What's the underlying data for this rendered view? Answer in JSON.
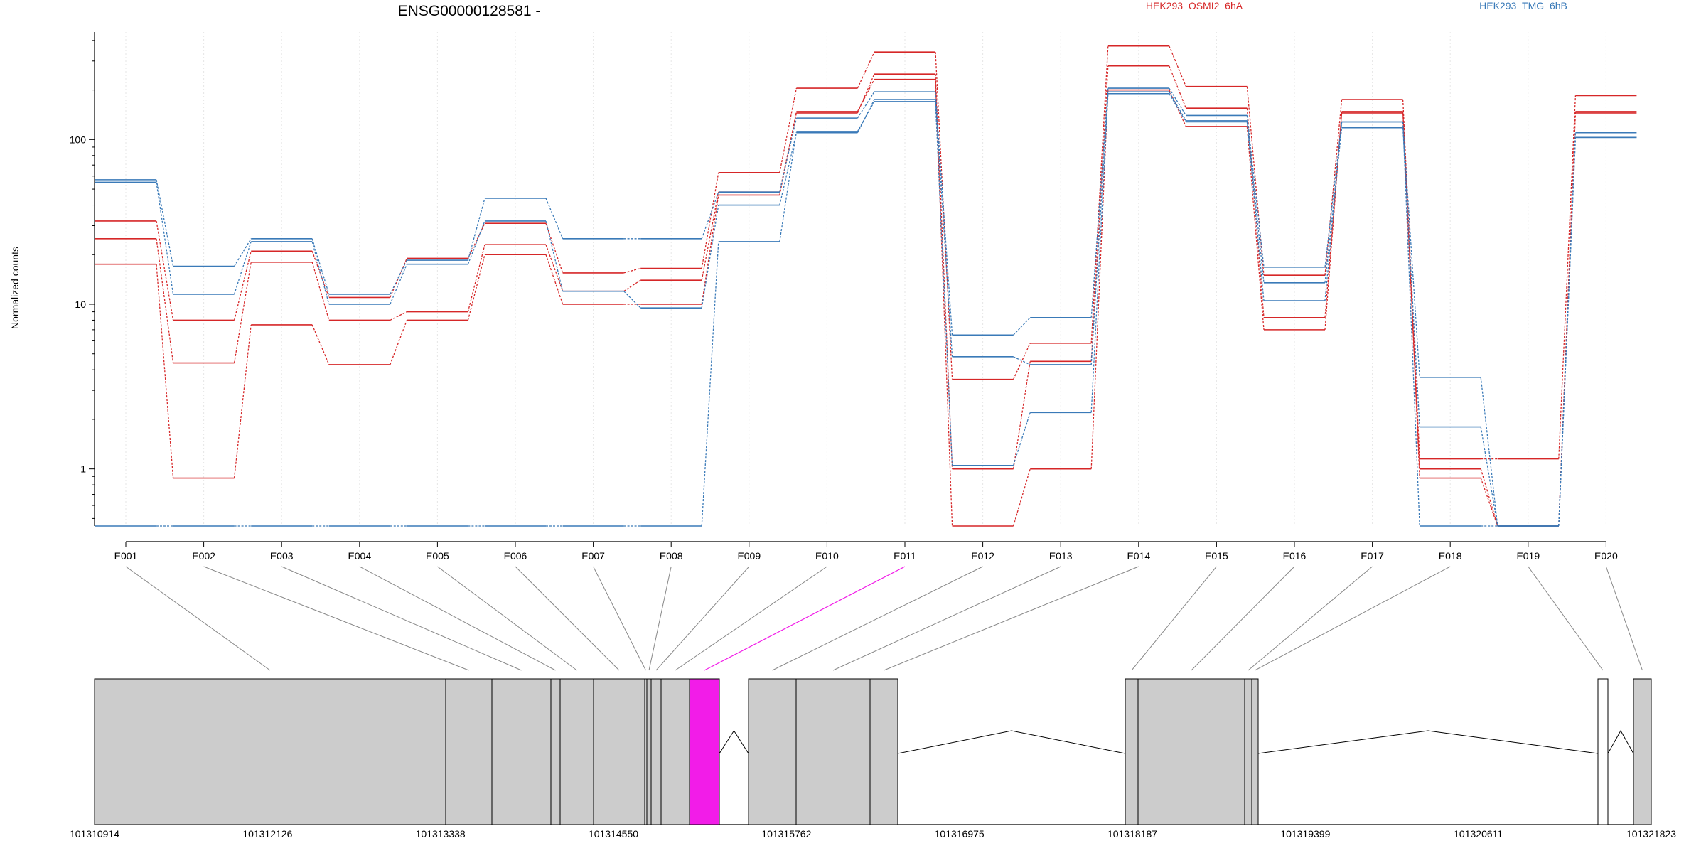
{
  "title": "ENSG00000128581 -",
  "ylabel": "Normalized counts",
  "legend": [
    {
      "label": "HEK293_OSMI2_6hA",
      "color": "#d62728"
    },
    {
      "label": "HEK293_TMG_6hB",
      "color": "#3a7ab8"
    }
  ],
  "chart_data": {
    "type": "line",
    "title": "ENSG00000128581 -",
    "ylabel": "Normalized counts",
    "yscale": "log",
    "ylim": [
      0.45,
      450
    ],
    "yticks": [
      1,
      10,
      100
    ],
    "ytick_labels": [
      "1",
      "10",
      "100"
    ],
    "grid": "vertical dotted at exon positions",
    "legend_placement": "top",
    "categories": [
      "E001",
      "E002",
      "E003",
      "E004",
      "E005",
      "E006",
      "E007",
      "E008",
      "E009",
      "E010",
      "E011",
      "E012",
      "E013",
      "E014",
      "E015",
      "E016",
      "E017",
      "E018",
      "E019",
      "E020"
    ],
    "series": [
      {
        "group": "HEK293_OSMI2_6hA",
        "color": "#d62728",
        "values": [
          32.0,
          8.0,
          21.0,
          11.0,
          19.0,
          31.0,
          15.5,
          16.5,
          63.0,
          205.0,
          340.0,
          3.5,
          5.8,
          370.0,
          210.0,
          15.0,
          175.0,
          1.15,
          1.15,
          185.0
        ]
      },
      {
        "group": "HEK293_OSMI2_6hA",
        "color": "#d62728",
        "values": [
          25.0,
          4.4,
          18.0,
          8.0,
          9.0,
          23.0,
          12.0,
          14.0,
          48.0,
          145.0,
          250.0,
          1.0,
          4.5,
          280.0,
          155.0,
          8.3,
          145.0,
          1.0,
          0.45,
          145.0
        ]
      },
      {
        "group": "HEK293_OSMI2_6hA",
        "color": "#d62728",
        "values": [
          17.5,
          0.88,
          7.5,
          4.3,
          8.0,
          20.0,
          10.0,
          10.0,
          46.0,
          148.0,
          232.0,
          0.45,
          1.0,
          200.0,
          120.0,
          7.0,
          148.0,
          0.88,
          0.45,
          148.0
        ]
      },
      {
        "group": "HEK293_TMG_6hB",
        "color": "#3a7ab8",
        "values": [
          57.0,
          17.0,
          25.0,
          11.5,
          18.5,
          44.0,
          25.0,
          25.0,
          48.0,
          135.0,
          195.0,
          6.5,
          8.3,
          205.0,
          140.0,
          16.8,
          128.0,
          3.6,
          0.45,
          103.0
        ]
      },
      {
        "group": "HEK293_TMG_6hB",
        "color": "#3a7ab8",
        "values": [
          55.0,
          11.5,
          24.0,
          10.0,
          17.5,
          32.0,
          12.0,
          9.5,
          40.0,
          110.0,
          175.0,
          4.8,
          4.3,
          195.0,
          130.0,
          13.5,
          118.0,
          1.8,
          0.45,
          110.0
        ]
      },
      {
        "group": "HEK293_TMG_6hB",
        "color": "#3a7ab8",
        "values": [
          0.45,
          0.45,
          0.45,
          0.45,
          0.45,
          0.45,
          0.45,
          0.45,
          24.0,
          112.0,
          170.0,
          1.05,
          2.2,
          190.0,
          128.0,
          10.5,
          128.0,
          0.45,
          0.45,
          103.0
        ]
      }
    ]
  },
  "gene_model": {
    "coordinate_labels": [
      "101310914",
      "101312126",
      "101313338",
      "101314550",
      "101315762",
      "101316975",
      "101318187",
      "101319399",
      "101320611",
      "101321823"
    ],
    "highlighted_exon": "E011",
    "highlight_color": "#f21ce8"
  }
}
